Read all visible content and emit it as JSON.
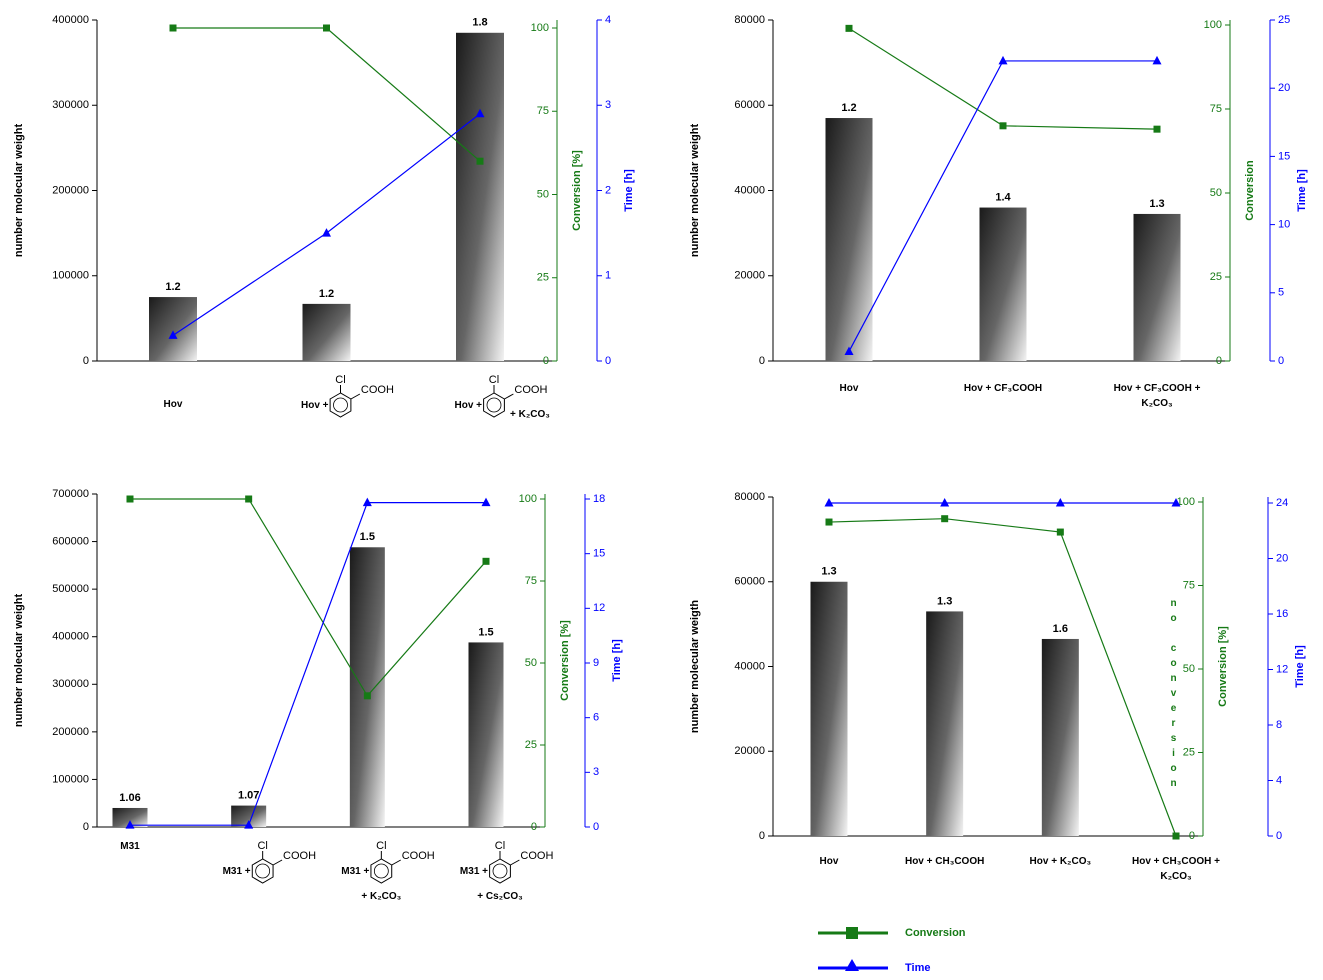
{
  "chart_data": [
    {
      "type": "bar",
      "categories": [
        "Hov",
        "Hov +",
        "Hov +"
      ],
      "category_notes": [
        null,
        null,
        "+ K₂CO₃"
      ],
      "structures": [
        false,
        true,
        true
      ],
      "structure_labels": [
        "Cl",
        "COOH"
      ],
      "values": [
        75000,
        67000,
        385000
      ],
      "bar_labels": [
        1.2,
        1.2,
        1.8
      ],
      "ylabel": "number molecular weight",
      "ylim": [
        0,
        400000
      ],
      "yticks": [
        0,
        100000,
        200000,
        300000,
        400000
      ],
      "y2label": "Conversion [%]",
      "y2lim": [
        0,
        100
      ],
      "y2ticks": [
        0,
        25,
        50,
        75,
        100
      ],
      "y3label": "Time [h]",
      "y3lim": [
        0,
        4
      ],
      "y3ticks": [
        0,
        1,
        2,
        3,
        4
      ],
      "series": [
        {
          "name": "Conversion",
          "color": "#167a16",
          "axis": "y2",
          "marker": "square",
          "values": [
            100,
            100,
            60
          ]
        },
        {
          "name": "Time",
          "color": "#0000ff",
          "axis": "y3",
          "marker": "triangle",
          "values": [
            0.3,
            1.5,
            2.9
          ]
        }
      ]
    },
    {
      "type": "bar",
      "categories": [
        "Hov",
        "Hov + CF₃COOH",
        "Hov + CF₃COOH + K₂CO₃"
      ],
      "values": [
        57000,
        36000,
        34500
      ],
      "bar_labels": [
        1.2,
        1.4,
        1.3
      ],
      "ylabel": "number molecular weight",
      "ylim": [
        0,
        80000
      ],
      "yticks": [
        0,
        20000,
        40000,
        60000,
        80000
      ],
      "y2label": "Conversion",
      "y2lim": [
        0,
        100
      ],
      "y2ticks": [
        0,
        25,
        50,
        75,
        100
      ],
      "y3label": "Time [h]",
      "y3lim": [
        0,
        25
      ],
      "y3ticks": [
        0,
        5,
        10,
        15,
        20,
        25
      ],
      "series": [
        {
          "name": "Conversion",
          "color": "#167a16",
          "axis": "y2",
          "marker": "square",
          "values": [
            99,
            70,
            69
          ]
        },
        {
          "name": "Time",
          "color": "#0000ff",
          "axis": "y3",
          "marker": "triangle",
          "values": [
            0.7,
            22,
            22
          ]
        }
      ]
    },
    {
      "type": "bar",
      "categories": [
        "M31",
        "M31 +",
        "M31 +",
        "M31 +"
      ],
      "category_notes": [
        null,
        null,
        "+ K₂CO₃",
        "+ Cs₂CO₃"
      ],
      "structures": [
        false,
        true,
        true,
        true
      ],
      "structure_labels": [
        "Cl",
        "COOH"
      ],
      "values": [
        40000,
        45000,
        588000,
        388000
      ],
      "bar_labels": [
        1.06,
        1.07,
        1.5,
        1.5
      ],
      "ylabel": "number molecular weight",
      "ylim": [
        0,
        700000
      ],
      "yticks": [
        0,
        100000,
        200000,
        300000,
        400000,
        500000,
        600000,
        700000
      ],
      "y2label": "Conversion [%]",
      "y2lim": [
        0,
        100
      ],
      "y2ticks": [
        0,
        25,
        50,
        75,
        100
      ],
      "y3label": "Time [h]",
      "y3lim": [
        0,
        18
      ],
      "y3ticks": [
        0,
        3,
        6,
        9,
        12,
        15,
        18
      ],
      "series": [
        {
          "name": "Conversion",
          "color": "#167a16",
          "axis": "y2",
          "marker": "square",
          "values": [
            100,
            100,
            40,
            81
          ]
        },
        {
          "name": "Time",
          "color": "#0000ff",
          "axis": "y3",
          "marker": "triangle",
          "values": [
            0.1,
            0.1,
            17.8,
            17.8
          ]
        }
      ]
    },
    {
      "type": "bar",
      "categories": [
        "Hov",
        "Hov + CH₃COOH",
        "Hov + K₂CO₃",
        "Hov + CH₃COOH + K₂CO₃"
      ],
      "values": [
        60000,
        53000,
        46500,
        null
      ],
      "bar_labels": [
        1.3,
        1.3,
        1.6,
        null
      ],
      "annotation": "no conversion",
      "ylabel": "number molecular weigth",
      "ylim": [
        0,
        80000
      ],
      "yticks": [
        0,
        20000,
        40000,
        60000,
        80000
      ],
      "y2label": "Conversion [%]",
      "y2lim": [
        0,
        100
      ],
      "y2ticks": [
        0,
        25,
        50,
        75,
        100
      ],
      "y3label": "Time [h]",
      "y3lim": [
        0,
        24
      ],
      "y3ticks": [
        0,
        4,
        8,
        12,
        16,
        20,
        24
      ],
      "series": [
        {
          "name": "Conversion",
          "color": "#167a16",
          "axis": "y2",
          "marker": "square",
          "values": [
            94,
            95,
            91,
            0
          ]
        },
        {
          "name": "Time",
          "color": "#0000ff",
          "axis": "y3",
          "marker": "triangle",
          "values": [
            24,
            24,
            24,
            24
          ]
        }
      ]
    }
  ]
}
